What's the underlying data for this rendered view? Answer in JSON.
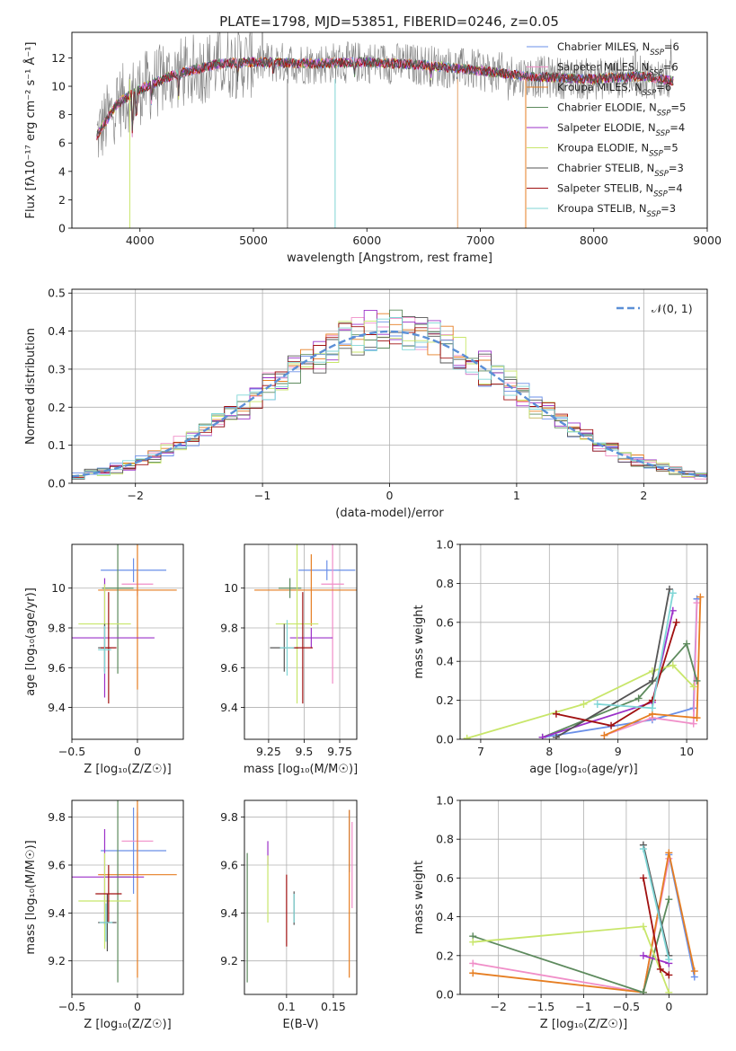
{
  "title": "PLATE=1798, MJD=53851, FIBERID=0246, z=0.05",
  "colors": [
    "#6a8fe8",
    "#f08ec8",
    "#e67e22",
    "#5d8a5d",
    "#9b30c8",
    "#c8e66a",
    "#555555",
    "#a01010",
    "#7fd6d6"
  ],
  "chart_data": [
    {
      "id": "spectrum",
      "type": "line",
      "title": "PLATE=1798, MJD=53851, FIBERID=0246, z=0.05",
      "xlabel": "wavelength [Angstrom, rest frame]",
      "ylabel": "Flux [fλ10⁻¹⁷ erg cm⁻² s⁻¹ Å⁻¹]",
      "xlim": [
        3400,
        9000
      ],
      "ylim": [
        0,
        13.8
      ],
      "xticks": [
        4000,
        5000,
        6000,
        7000,
        8000,
        9000
      ],
      "yticks": [
        0,
        2,
        4,
        6,
        8,
        10,
        12
      ],
      "legend_position": "top-right",
      "legend": [
        {
          "label": "Chabrier MILES, N",
          "sub": "SSP",
          "suffix": "=6"
        },
        {
          "label": "Salpeter MILES, N",
          "sub": "SSP",
          "suffix": "=6"
        },
        {
          "label": "Kroupa MILES, N",
          "sub": "SSP",
          "suffix": "=6"
        },
        {
          "label": "Chabrier ELODIE, N",
          "sub": "SSP",
          "suffix": "=5"
        },
        {
          "label": "Salpeter ELODIE, N",
          "sub": "SSP",
          "suffix": "=4"
        },
        {
          "label": "Kroupa ELODIE, N",
          "sub": "SSP",
          "suffix": "=5"
        },
        {
          "label": "Chabrier STELIB, N",
          "sub": "SSP",
          "suffix": "=3"
        },
        {
          "label": "Salpeter STELIB, N",
          "sub": "SSP",
          "suffix": "=4"
        },
        {
          "label": "Kroupa STELIB, N",
          "sub": "SSP",
          "suffix": "=3"
        }
      ],
      "data_profile": {
        "x": [
          3620,
          3800,
          4000,
          4300,
          4700,
          5000,
          5500,
          6000,
          6500,
          7000,
          7400,
          8000,
          8400,
          8700
        ],
        "y": [
          6.5,
          8.8,
          9.8,
          10.8,
          11.6,
          11.7,
          11.6,
          11.7,
          11.5,
          11.1,
          10.7,
          10.5,
          10.7,
          10.4
        ]
      }
    },
    {
      "id": "residuals",
      "type": "line",
      "xlabel": "(data-model)/error",
      "ylabel": "Normed distribution",
      "xlim": [
        -2.5,
        2.5
      ],
      "ylim": [
        0,
        0.51
      ],
      "xticks": [
        -2,
        -1,
        0,
        1,
        2
      ],
      "yticks": [
        0.0,
        0.1,
        0.2,
        0.3,
        0.4,
        0.5
      ],
      "reference_label": "𝒩(0, 1)",
      "reference_curve": {
        "mean": 0,
        "sigma": 1
      }
    },
    {
      "id": "age_vs_Z",
      "type": "scatter",
      "xlabel": "Z [log₁₀(Z/Z☉)]",
      "ylabel": "age  [log₁₀(age/yr)]",
      "xlim": [
        -0.5,
        0.35
      ],
      "ylim": [
        9.24,
        10.22
      ],
      "xticks": [
        -0.5,
        0.0
      ],
      "yticks": [
        9.4,
        9.6,
        9.8,
        10.0
      ],
      "points": [
        {
          "x": -0.03,
          "y": 10.09,
          "xerr": 0.25,
          "yerr": 0.06
        },
        {
          "x": 0.0,
          "y": 10.02,
          "xerr": 0.12,
          "yerr": 0.06
        },
        {
          "x": 0.0,
          "y": 9.99,
          "xerr": 0.3,
          "yerr": 0.5
        },
        {
          "x": -0.15,
          "y": 10.0,
          "xerr": 0.12,
          "yerr": 0.43
        },
        {
          "x": -0.25,
          "y": 9.75,
          "xerr": 0.38,
          "yerr": 0.3
        },
        {
          "x": -0.25,
          "y": 9.82,
          "xerr": 0.2,
          "yerr": 0.2
        },
        {
          "x": -0.25,
          "y": 9.7,
          "xerr": 0.05,
          "yerr": 0.12
        },
        {
          "x": -0.22,
          "y": 9.7,
          "xerr": 0.06,
          "yerr": 0.28
        },
        {
          "x": -0.25,
          "y": 9.69,
          "xerr": 0.05,
          "yerr": 0.12
        }
      ]
    },
    {
      "id": "age_vs_mass",
      "type": "scatter",
      "xlabel": "mass [log₁₀(M/M☉)]",
      "ylabel": "",
      "xlim": [
        9.08,
        9.87
      ],
      "ylim": [
        9.24,
        10.22
      ],
      "xticks": [
        9.25,
        9.5,
        9.75
      ],
      "yticks": [
        9.4,
        9.6,
        9.8,
        10.0
      ],
      "points": [
        {
          "x": 9.66,
          "y": 10.09,
          "xerr": 0.2,
          "yerr": 0.05
        },
        {
          "x": 9.7,
          "y": 10.02,
          "xerr": 0.08,
          "yerr": 0.5
        },
        {
          "x": 9.55,
          "y": 9.99,
          "xerr": 0.4,
          "yerr": 0.18
        },
        {
          "x": 9.4,
          "y": 10.0,
          "xerr": 0.08,
          "yerr": 0.05
        },
        {
          "x": 9.55,
          "y": 9.75,
          "xerr": 0.15,
          "yerr": 0.05
        },
        {
          "x": 9.45,
          "y": 9.82,
          "xerr": 0.15,
          "yerr": 0.4
        },
        {
          "x": 9.36,
          "y": 9.7,
          "xerr": 0.1,
          "yerr": 0.12
        },
        {
          "x": 9.49,
          "y": 9.7,
          "xerr": 0.07,
          "yerr": 0.28
        },
        {
          "x": 9.38,
          "y": 9.7,
          "xerr": 0.05,
          "yerr": 0.14
        }
      ]
    },
    {
      "id": "mass_weight_vs_age",
      "type": "line",
      "xlabel": "age  [log₁₀(age/yr)]",
      "ylabel": "mass weight",
      "xlim": [
        6.7,
        10.3
      ],
      "ylim": [
        0,
        1.0
      ],
      "xticks": [
        7,
        8,
        9,
        10
      ],
      "yticks": [
        0.0,
        0.2,
        0.4,
        0.6,
        0.8,
        1.0
      ],
      "series": [
        {
          "x": [
            7.9,
            9.5,
            10.1,
            10.15
          ],
          "y": [
            0.01,
            0.1,
            0.16,
            0.72
          ]
        },
        {
          "x": [
            8.8,
            9.5,
            10.1,
            10.15
          ],
          "y": [
            0.02,
            0.11,
            0.08,
            0.7
          ]
        },
        {
          "x": [
            8.8,
            9.5,
            10.15,
            10.2
          ],
          "y": [
            0.02,
            0.13,
            0.11,
            0.73
          ]
        },
        {
          "x": [
            7.9,
            9.3,
            10.0,
            10.15
          ],
          "y": [
            0.01,
            0.21,
            0.49,
            0.3
          ]
        },
        {
          "x": [
            7.9,
            9.5,
            9.8
          ],
          "y": [
            0.01,
            0.19,
            0.66
          ]
        },
        {
          "x": [
            6.8,
            8.5,
            9.5,
            9.8,
            10.1
          ],
          "y": [
            0.005,
            0.18,
            0.35,
            0.38,
            0.27
          ]
        },
        {
          "x": [
            8.1,
            9.5,
            9.75
          ],
          "y": [
            0.01,
            0.3,
            0.77
          ]
        },
        {
          "x": [
            8.1,
            8.9,
            9.5,
            9.85
          ],
          "y": [
            0.13,
            0.07,
            0.2,
            0.6
          ]
        },
        {
          "x": [
            8.7,
            9.5,
            9.8
          ],
          "y": [
            0.18,
            0.16,
            0.75
          ]
        }
      ]
    },
    {
      "id": "mass_vs_Z",
      "type": "scatter",
      "xlabel": "Z [log₁₀(Z/Z☉)]",
      "ylabel": "mass [log₁₀(M/M☉)]",
      "xlim": [
        -0.5,
        0.35
      ],
      "ylim": [
        9.06,
        9.87
      ],
      "xticks": [
        -0.5,
        0.0
      ],
      "yticks": [
        9.2,
        9.4,
        9.6,
        9.8
      ],
      "points": [
        {
          "x": -0.03,
          "y": 9.66,
          "xerr": 0.25,
          "yerr": 0.18
        },
        {
          "x": 0.0,
          "y": 9.7,
          "xerr": 0.12,
          "yerr": 0.12
        },
        {
          "x": 0.0,
          "y": 9.56,
          "xerr": 0.3,
          "yerr": 0.43
        },
        {
          "x": -0.15,
          "y": 9.55,
          "xerr": 0.1,
          "yerr": 0.44
        },
        {
          "x": -0.25,
          "y": 9.55,
          "xerr": 0.3,
          "yerr": 0.2
        },
        {
          "x": -0.25,
          "y": 9.45,
          "xerr": 0.2,
          "yerr": 0.2
        },
        {
          "x": -0.23,
          "y": 9.36,
          "xerr": 0.07,
          "yerr": 0.12
        },
        {
          "x": -0.22,
          "y": 9.48,
          "xerr": 0.1,
          "yerr": 0.12
        },
        {
          "x": -0.24,
          "y": 9.36,
          "xerr": 0.05,
          "yerr": 0.08
        }
      ]
    },
    {
      "id": "mass_vs_ebv",
      "type": "scatter",
      "xlabel": "E(B-V)",
      "ylabel": "",
      "xlim": [
        0.055,
        0.175
      ],
      "ylim": [
        9.06,
        9.87
      ],
      "xticks": [
        0.1,
        0.15
      ],
      "yticks": [
        9.2,
        9.4,
        9.6,
        9.8
      ],
      "points": [
        {
          "x": 0.167,
          "y": 9.7,
          "xerr": 0,
          "yerr": 0.13
        },
        {
          "x": 0.17,
          "y": 9.6,
          "xerr": 0,
          "yerr": 0.18
        },
        {
          "x": 0.167,
          "y": 9.48,
          "xerr": 0,
          "yerr": 0.35
        },
        {
          "x": 0.058,
          "y": 9.38,
          "xerr": 0,
          "yerr": 0.27
        },
        {
          "x": 0.08,
          "y": 9.65,
          "xerr": 0,
          "yerr": 0.05
        },
        {
          "x": 0.08,
          "y": 9.5,
          "xerr": 0,
          "yerr": 0.14
        },
        {
          "x": 0.108,
          "y": 9.42,
          "xerr": 0,
          "yerr": 0.07
        },
        {
          "x": 0.1,
          "y": 9.41,
          "xerr": 0,
          "yerr": 0.15
        },
        {
          "x": 0.108,
          "y": 9.42,
          "xerr": 0,
          "yerr": 0.06
        }
      ]
    },
    {
      "id": "mass_weight_vs_Z",
      "type": "line",
      "xlabel": "Z [log₁₀(Z/Z☉)]",
      "ylabel": "mass weight",
      "xlim": [
        -2.45,
        0.45
      ],
      "ylim": [
        0,
        1.0
      ],
      "xticks": [
        -2.0,
        -1.5,
        -1.0,
        -0.5,
        0.0
      ],
      "yticks": [
        0.0,
        0.2,
        0.4,
        0.6,
        0.8,
        1.0
      ],
      "series": [
        {
          "x": [
            -0.3,
            0.0,
            0.3
          ],
          "y": [
            0.01,
            0.72,
            0.09
          ]
        },
        {
          "x": [
            -2.3,
            -0.3,
            0.0
          ],
          "y": [
            0.16,
            0.01,
            0.7
          ]
        },
        {
          "x": [
            -2.3,
            -0.3,
            0.0,
            0.3
          ],
          "y": [
            0.11,
            0.01,
            0.73,
            0.12
          ]
        },
        {
          "x": [
            -2.3,
            -0.3,
            0.0
          ],
          "y": [
            0.3,
            0.01,
            0.49
          ]
        },
        {
          "x": [
            -0.3,
            0.0
          ],
          "y": [
            0.2,
            0.16
          ]
        },
        {
          "x": [
            -2.3,
            -0.3,
            0.0
          ],
          "y": [
            0.27,
            0.35,
            0.01
          ]
        },
        {
          "x": [
            -0.3,
            0.0
          ],
          "y": [
            0.77,
            0.2
          ]
        },
        {
          "x": [
            -0.3,
            -0.1,
            0.0
          ],
          "y": [
            0.6,
            0.13,
            0.1
          ]
        },
        {
          "x": [
            -0.3,
            0.0
          ],
          "y": [
            0.75,
            0.18
          ]
        }
      ]
    }
  ]
}
